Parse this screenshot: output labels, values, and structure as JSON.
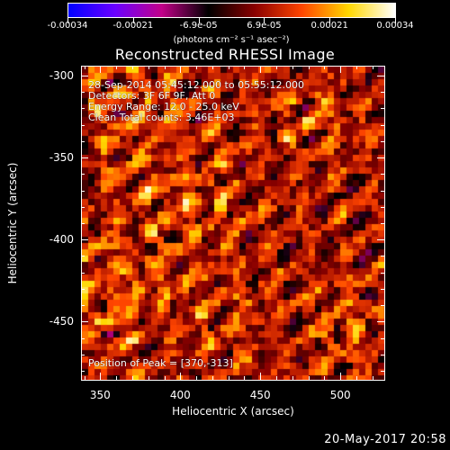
{
  "colorbar": {
    "tick_labels": [
      "-0.00034",
      "-0.00021",
      "-6.9e-05",
      "6.9e-05",
      "0.00021",
      "0.00034"
    ],
    "units": "(photons cm⁻² s⁻¹ asec⁻²)",
    "gradient": [
      "#0000ff",
      "#6a00ff",
      "#c20089",
      "#000000",
      "#8b0000",
      "#ff4500",
      "#ffd700",
      "#ffffff"
    ]
  },
  "title": "Reconstructed RHESSI Image",
  "info": {
    "line1": "28-Sep-2014 05:45:12.000 to 05:55:12.000",
    "line2": "Detectors: 3F 6F 9F, Att 0",
    "line3": "Energy Range: 12.0 - 25.0 keV",
    "line4": "Clean    Total counts: 3.46E+03",
    "peak": "Position of Peak = [370,-313]"
  },
  "axes": {
    "xlabel": "Heliocentric X (arcsec)",
    "ylabel": "Heliocentric Y (arcsec)",
    "xticks": [
      "350",
      "400",
      "450",
      "500"
    ],
    "yticks": [
      "-300",
      "-350",
      "-400",
      "-450"
    ],
    "xlim": [
      338,
      528
    ],
    "ylim": [
      -486,
      -294
    ]
  },
  "footer": "20-May-2017 20:58"
}
